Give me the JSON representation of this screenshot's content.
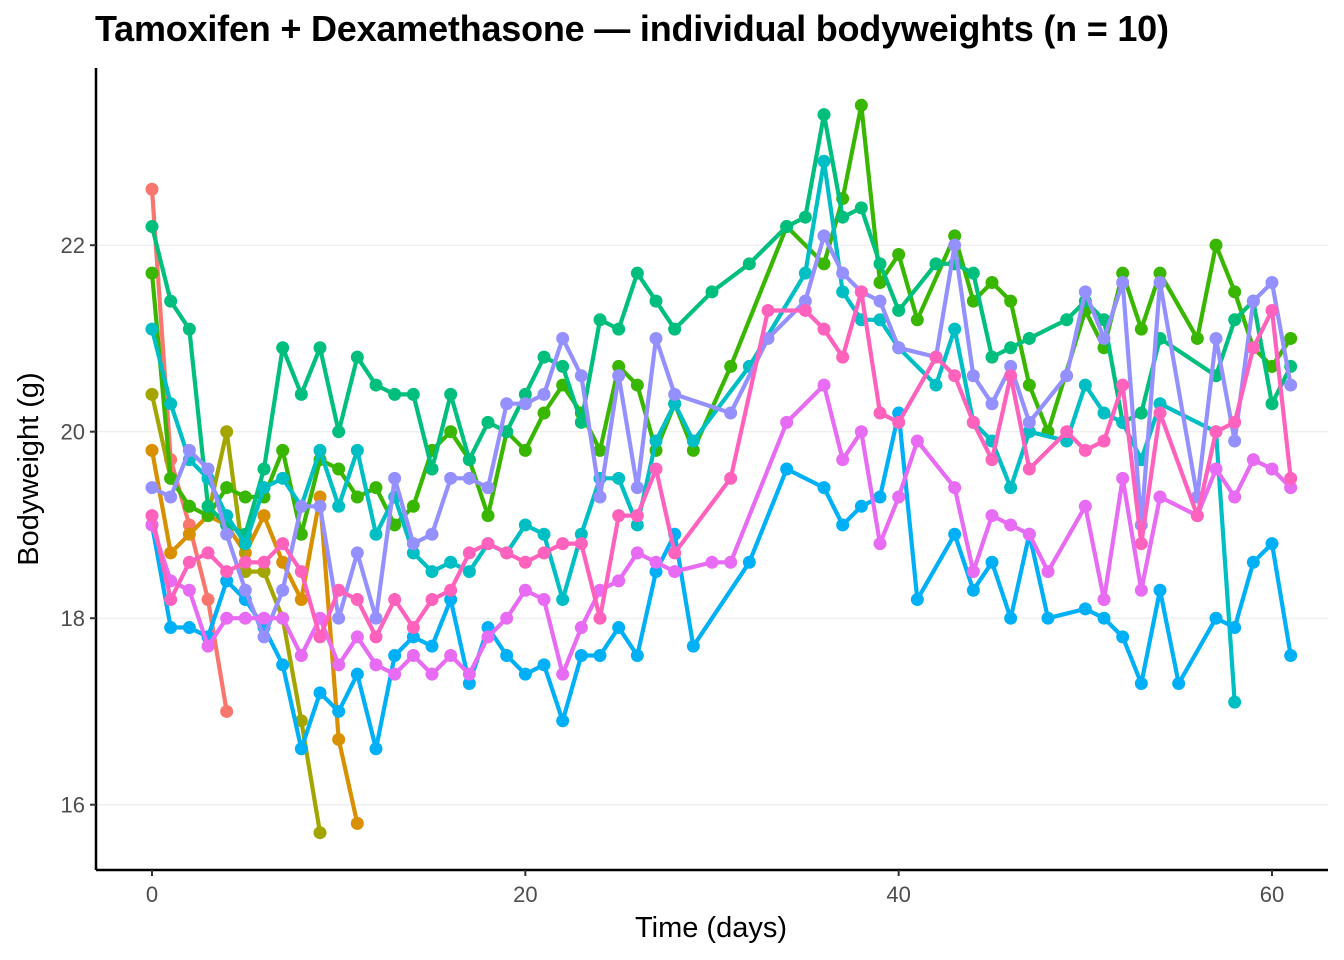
{
  "chart_data": {
    "type": "line",
    "title": "Tamoxifen + Dexamethasone — individual bodyweights (n = 10)",
    "xlabel": "Time (days)",
    "ylabel": "Bodyweight (g)",
    "xlim": [
      -3,
      63
    ],
    "ylim": [
      15.3,
      23.9
    ],
    "xticks": [
      0,
      20,
      40,
      60
    ],
    "yticks": [
      16,
      18,
      20,
      22
    ],
    "grid": "horizontal major",
    "legend": "none",
    "series": [
      {
        "color": "#F8766D",
        "x": [
          0,
          1,
          2,
          3,
          4
        ],
        "y": [
          22.6,
          19.7,
          19.0,
          18.2,
          17.0
        ]
      },
      {
        "color": "#D89000",
        "x": [
          0,
          1,
          2,
          3,
          4,
          5,
          6,
          7,
          8,
          9,
          10,
          11
        ],
        "y": [
          19.8,
          18.7,
          18.9,
          19.1,
          19.0,
          18.7,
          19.1,
          18.6,
          18.2,
          19.3,
          16.7,
          15.8
        ]
      },
      {
        "color": "#A3A500",
        "x": [
          0,
          1,
          2,
          3,
          4,
          5,
          6,
          7,
          8,
          9
        ],
        "y": [
          20.4,
          19.5,
          19.2,
          19.1,
          20.0,
          18.5,
          18.5,
          18.0,
          16.9,
          15.7
        ]
      },
      {
        "color": "#39B600",
        "x": [
          0,
          1,
          2,
          3,
          4,
          5,
          6,
          7,
          8,
          9,
          10,
          11,
          12,
          13,
          14,
          15,
          16,
          17,
          18,
          19,
          20,
          21,
          22,
          23,
          24,
          25,
          26,
          27,
          28,
          29,
          31,
          34,
          36,
          37,
          38,
          39,
          40,
          41,
          43,
          44,
          45,
          46,
          47,
          48,
          50,
          51,
          52,
          53,
          54,
          56,
          57,
          58,
          59,
          60,
          61
        ],
        "y": [
          21.7,
          19.5,
          19.2,
          19.1,
          19.4,
          19.3,
          19.3,
          19.8,
          18.9,
          19.7,
          19.6,
          19.3,
          19.4,
          19.0,
          19.2,
          19.8,
          20.0,
          19.7,
          19.1,
          20.0,
          19.8,
          20.2,
          20.5,
          20.2,
          19.8,
          20.7,
          20.5,
          19.8,
          20.3,
          19.8,
          20.7,
          22.2,
          21.8,
          22.5,
          23.5,
          21.6,
          21.9,
          21.2,
          22.1,
          21.4,
          21.6,
          21.4,
          20.5,
          20.0,
          21.3,
          20.9,
          21.7,
          21.1,
          21.7,
          21.0,
          22.0,
          21.5,
          20.9,
          20.7,
          21.0
        ]
      },
      {
        "color": "#00BF7D",
        "x": [
          0,
          1,
          2,
          3,
          4,
          5,
          6,
          7,
          8,
          9,
          10,
          11,
          12,
          13,
          14,
          15,
          16,
          17,
          18,
          19,
          20,
          21,
          22,
          23,
          24,
          25,
          26,
          27,
          28,
          30,
          32,
          34,
          35,
          36,
          37,
          38,
          39,
          40,
          42,
          43,
          44,
          45,
          46,
          47,
          49,
          50,
          51,
          52,
          53,
          54,
          57,
          58,
          59,
          60,
          61
        ],
        "y": [
          22.2,
          21.4,
          21.1,
          19.2,
          19.0,
          18.9,
          19.6,
          20.9,
          20.4,
          20.9,
          20.0,
          20.8,
          20.5,
          20.4,
          20.4,
          19.6,
          20.4,
          19.7,
          20.1,
          20.0,
          20.4,
          20.8,
          20.7,
          20.1,
          21.2,
          21.1,
          21.7,
          21.4,
          21.1,
          21.5,
          21.8,
          22.2,
          22.3,
          23.4,
          22.3,
          22.4,
          21.8,
          21.3,
          21.8,
          21.8,
          21.7,
          20.8,
          20.9,
          21.0,
          21.2,
          21.4,
          21.2,
          20.1,
          20.2,
          21.0,
          20.6,
          21.2,
          21.4,
          20.3,
          20.7
        ]
      },
      {
        "color": "#00BFC4",
        "x": [
          0,
          1,
          2,
          3,
          4,
          5,
          6,
          7,
          8,
          9,
          10,
          11,
          12,
          13,
          14,
          15,
          16,
          17,
          18,
          19,
          20,
          21,
          22,
          23,
          24,
          25,
          26,
          27,
          28,
          29,
          32,
          35,
          36,
          37,
          38,
          39,
          40,
          42,
          43,
          44,
          45,
          46,
          47,
          49,
          50,
          51,
          52,
          53,
          54,
          57,
          58
        ],
        "y": [
          21.1,
          20.3,
          19.7,
          19.5,
          19.1,
          18.8,
          19.4,
          19.5,
          19.2,
          19.8,
          19.2,
          19.8,
          18.9,
          19.3,
          18.7,
          18.5,
          18.6,
          18.5,
          18.8,
          18.7,
          19.0,
          18.9,
          18.2,
          18.9,
          19.5,
          19.5,
          19.0,
          19.9,
          20.3,
          19.9,
          20.7,
          21.7,
          22.9,
          21.5,
          21.2,
          21.2,
          20.9,
          20.5,
          21.1,
          20.1,
          19.9,
          19.4,
          20.0,
          19.9,
          20.5,
          20.2,
          20.1,
          19.7,
          20.3,
          20.0,
          17.1
        ]
      },
      {
        "color": "#00B0F6",
        "x": [
          0,
          1,
          2,
          3,
          4,
          5,
          6,
          7,
          8,
          9,
          10,
          11,
          12,
          13,
          14,
          15,
          16,
          17,
          18,
          19,
          20,
          21,
          22,
          23,
          24,
          25,
          26,
          27,
          28,
          29,
          32,
          34,
          36,
          37,
          38,
          39,
          40,
          41,
          43,
          44,
          45,
          46,
          47,
          48,
          50,
          51,
          52,
          53,
          54,
          55,
          57,
          58,
          59,
          60,
          61
        ],
        "y": [
          19.0,
          17.9,
          17.9,
          17.8,
          18.4,
          18.2,
          17.9,
          17.5,
          16.6,
          17.2,
          17.0,
          17.4,
          16.6,
          17.6,
          17.8,
          17.7,
          18.2,
          17.3,
          17.9,
          17.6,
          17.4,
          17.5,
          16.9,
          17.6,
          17.6,
          17.9,
          17.6,
          18.5,
          18.9,
          17.7,
          18.6,
          19.6,
          19.4,
          19.0,
          19.2,
          19.3,
          20.2,
          18.2,
          18.9,
          18.3,
          18.6,
          18.0,
          18.9,
          18.0,
          18.1,
          18.0,
          17.8,
          17.3,
          18.3,
          17.3,
          18.0,
          17.9,
          18.6,
          18.8,
          17.6
        ]
      },
      {
        "color": "#9590FF",
        "x": [
          0,
          1,
          2,
          3,
          4,
          5,
          6,
          7,
          8,
          9,
          10,
          11,
          12,
          13,
          14,
          15,
          16,
          17,
          18,
          19,
          20,
          21,
          22,
          23,
          24,
          25,
          26,
          27,
          28,
          31,
          33,
          35,
          36,
          37,
          38,
          39,
          40,
          42,
          43,
          44,
          45,
          46,
          47,
          49,
          50,
          51,
          52,
          53,
          54,
          56,
          57,
          58,
          59,
          60,
          61
        ],
        "y": [
          19.4,
          19.3,
          19.8,
          19.6,
          18.9,
          18.3,
          17.8,
          18.3,
          19.2,
          19.2,
          18.0,
          18.7,
          18.0,
          19.5,
          18.8,
          18.9,
          19.5,
          19.5,
          19.4,
          20.3,
          20.3,
          20.4,
          21.0,
          20.6,
          19.3,
          20.6,
          19.4,
          21.0,
          20.4,
          20.2,
          21.0,
          21.4,
          22.1,
          21.7,
          21.5,
          21.4,
          20.9,
          20.8,
          22.0,
          20.6,
          20.3,
          20.7,
          20.1,
          20.6,
          21.5,
          21.0,
          21.6,
          19.0,
          21.6,
          19.3,
          21.0,
          19.9,
          21.4,
          21.6,
          20.5
        ]
      },
      {
        "color": "#E76BF3",
        "x": [
          0,
          1,
          2,
          3,
          4,
          5,
          6,
          7,
          8,
          9,
          10,
          11,
          12,
          13,
          14,
          15,
          16,
          17,
          18,
          19,
          20,
          21,
          22,
          23,
          24,
          25,
          26,
          27,
          28,
          30,
          31,
          34,
          36,
          37,
          38,
          39,
          40,
          41,
          43,
          44,
          45,
          46,
          47,
          48,
          50,
          51,
          52,
          53,
          54,
          56,
          57,
          58,
          59,
          60,
          61
        ],
        "y": [
          19.0,
          18.4,
          18.3,
          17.7,
          18.0,
          18.0,
          18.0,
          18.0,
          17.6,
          18.0,
          17.5,
          17.8,
          17.5,
          17.4,
          17.6,
          17.4,
          17.6,
          17.4,
          17.8,
          18.0,
          18.3,
          18.2,
          17.4,
          17.9,
          18.3,
          18.4,
          18.7,
          18.6,
          18.5,
          18.6,
          18.6,
          20.1,
          20.5,
          19.7,
          20.0,
          18.8,
          19.3,
          19.9,
          19.4,
          18.5,
          19.1,
          19.0,
          18.9,
          18.5,
          19.2,
          18.2,
          19.5,
          18.3,
          19.3,
          19.1,
          19.6,
          19.3,
          19.7,
          19.6,
          19.4
        ]
      },
      {
        "color": "#FF62BC",
        "x": [
          0,
          1,
          2,
          3,
          4,
          5,
          6,
          7,
          8,
          9,
          10,
          11,
          12,
          13,
          14,
          15,
          16,
          17,
          18,
          19,
          20,
          21,
          22,
          23,
          24,
          25,
          26,
          27,
          28,
          31,
          33,
          35,
          36,
          37,
          38,
          39,
          40,
          42,
          43,
          44,
          45,
          46,
          47,
          49,
          50,
          51,
          52,
          53,
          54,
          56,
          57,
          58,
          59,
          60,
          61
        ],
        "y": [
          19.1,
          18.2,
          18.6,
          18.7,
          18.5,
          18.6,
          18.6,
          18.8,
          18.5,
          17.8,
          18.3,
          18.2,
          17.8,
          18.2,
          17.9,
          18.2,
          18.3,
          18.7,
          18.8,
          18.7,
          18.6,
          18.7,
          18.8,
          18.8,
          18.0,
          19.1,
          19.1,
          19.6,
          18.7,
          19.5,
          21.3,
          21.3,
          21.1,
          20.8,
          21.5,
          20.2,
          20.1,
          20.8,
          20.6,
          20.1,
          19.7,
          20.6,
          19.6,
          20.0,
          19.8,
          19.9,
          20.5,
          18.8,
          20.2,
          19.1,
          20.0,
          20.1,
          20.9,
          21.3,
          19.5
        ]
      }
    ]
  }
}
